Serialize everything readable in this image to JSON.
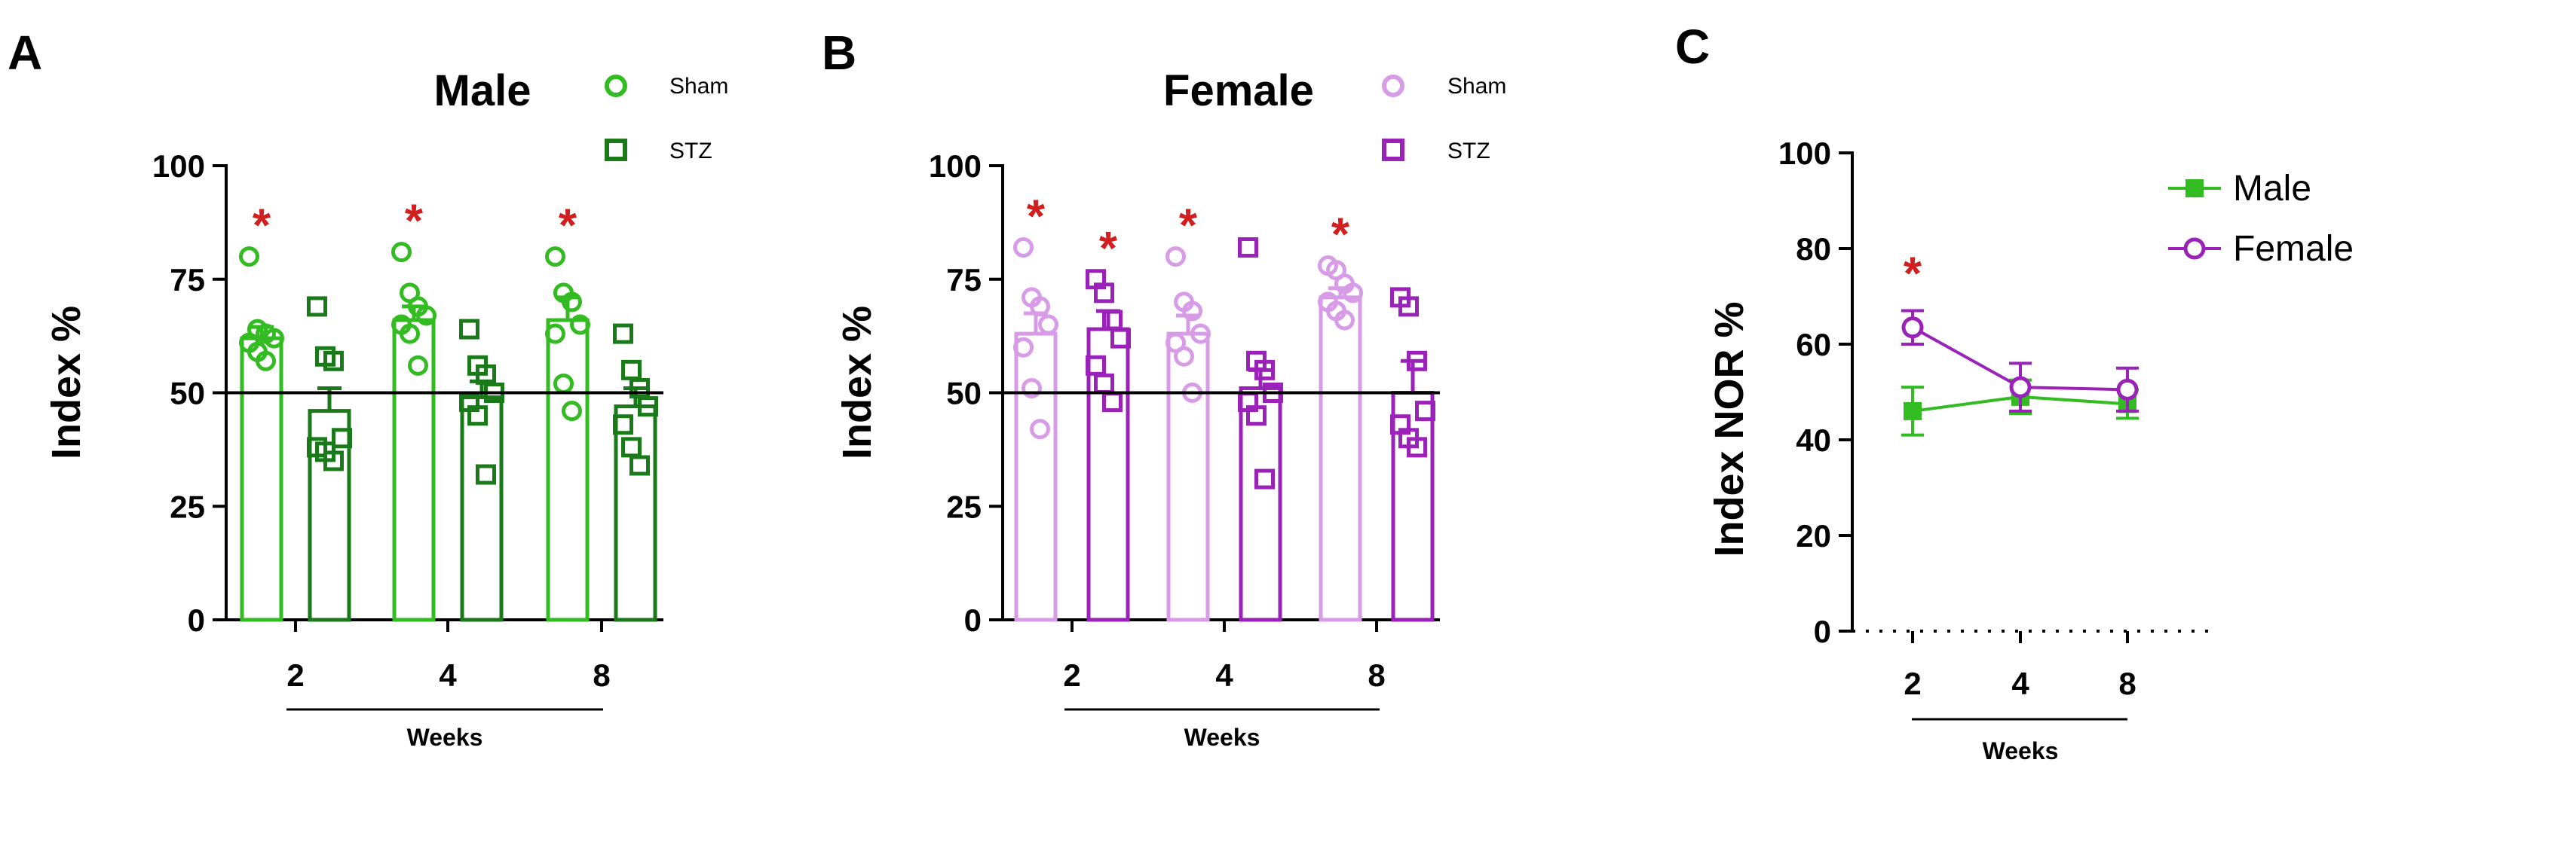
{
  "colors": {
    "male_sham": "#33bb22",
    "male_stz": "#1a7a1a",
    "female_sham": "#d79be8",
    "female_stz": "#9a22b8",
    "male_line": "#33bb22",
    "female_line": "#9a22b8",
    "significance": "#d11f1f"
  },
  "chart_data": [
    {
      "panel": "A",
      "type": "bar",
      "title": "Male",
      "ylabel": "Index %",
      "xlabel": "Weeks",
      "ylim": [
        0,
        100
      ],
      "yticks": [
        "0",
        "25",
        "50",
        "75",
        "100"
      ],
      "reference_line": 50,
      "categories": [
        "2",
        "4",
        "8"
      ],
      "legend": [
        {
          "name": "Sham",
          "marker": "circle",
          "color": "#33bb22"
        },
        {
          "name": "STZ",
          "marker": "square",
          "color": "#1a7a1a"
        }
      ],
      "series": [
        {
          "name": "Sham",
          "marker": "circle",
          "values": [
            62,
            66,
            66
          ],
          "sem": [
            2.5,
            3,
            5
          ],
          "significance": [
            "*",
            "*",
            "*"
          ],
          "points": [
            [
              80,
              64,
              63,
              62,
              61,
              59,
              57
            ],
            [
              81,
              72,
              69,
              67,
              65,
              63,
              56
            ],
            [
              80,
              72,
              70,
              65,
              63,
              52,
              46
            ]
          ]
        },
        {
          "name": "STZ",
          "marker": "square",
          "values": [
            46,
            49,
            47
          ],
          "sem": [
            5,
            3.5,
            4
          ],
          "significance": [
            "",
            "",
            ""
          ],
          "points": [
            [
              69,
              58,
              57,
              40,
              38,
              37,
              35
            ],
            [
              64,
              56,
              54,
              50,
              48,
              45,
              32
            ],
            [
              63,
              55,
              51,
              47,
              43,
              38,
              34
            ]
          ]
        }
      ]
    },
    {
      "panel": "B",
      "type": "bar",
      "title": "Female",
      "ylabel": "Index %",
      "xlabel": "Weeks",
      "ylim": [
        0,
        100
      ],
      "yticks": [
        "0",
        "25",
        "50",
        "75",
        "100"
      ],
      "reference_line": 50,
      "categories": [
        "2",
        "4",
        "8"
      ],
      "legend": [
        {
          "name": "Sham",
          "marker": "circle",
          "color": "#d79be8"
        },
        {
          "name": "STZ",
          "marker": "square",
          "color": "#9a22b8"
        }
      ],
      "series": [
        {
          "name": "Sham",
          "marker": "circle",
          "values": [
            63,
            63,
            71
          ],
          "sem": [
            4.5,
            4,
            2
          ],
          "significance": [
            "*",
            "*",
            "*"
          ],
          "points": [
            [
              82,
              71,
              69,
              65,
              60,
              51,
              42
            ],
            [
              80,
              70,
              68,
              63,
              61,
              58,
              50
            ],
            [
              78,
              77,
              74,
              72,
              70,
              68,
              66
            ]
          ]
        },
        {
          "name": "STZ",
          "marker": "square",
          "values": [
            64,
            51,
            50
          ],
          "sem": [
            4,
            4,
            7
          ],
          "significance": [
            "*",
            "",
            ""
          ],
          "points": [
            [
              75,
              72,
              66,
              62,
              56,
              52,
              48
            ],
            [
              82,
              57,
              55,
              50,
              48,
              45,
              31
            ],
            [
              71,
              69,
              57,
              46,
              43,
              40,
              38
            ]
          ]
        }
      ]
    },
    {
      "panel": "C",
      "type": "line",
      "ylabel": "Index NOR %",
      "xlabel": "Weeks",
      "ylim": [
        0,
        100
      ],
      "yticks": [
        "0",
        "20",
        "40",
        "60",
        "80",
        "100"
      ],
      "x": [
        "2",
        "4",
        "8"
      ],
      "series": [
        {
          "name": "Male",
          "marker": "square",
          "color": "#33bb22",
          "values": [
            46,
            49,
            47.5
          ],
          "sem": [
            5,
            3.5,
            3
          ]
        },
        {
          "name": "Female",
          "marker": "circle",
          "color": "#9a22b8",
          "values": [
            63.5,
            51,
            50.5
          ],
          "sem": [
            3.5,
            5,
            4.5
          ]
        }
      ],
      "significance": [
        {
          "x": "2",
          "label": "*"
        }
      ]
    }
  ]
}
